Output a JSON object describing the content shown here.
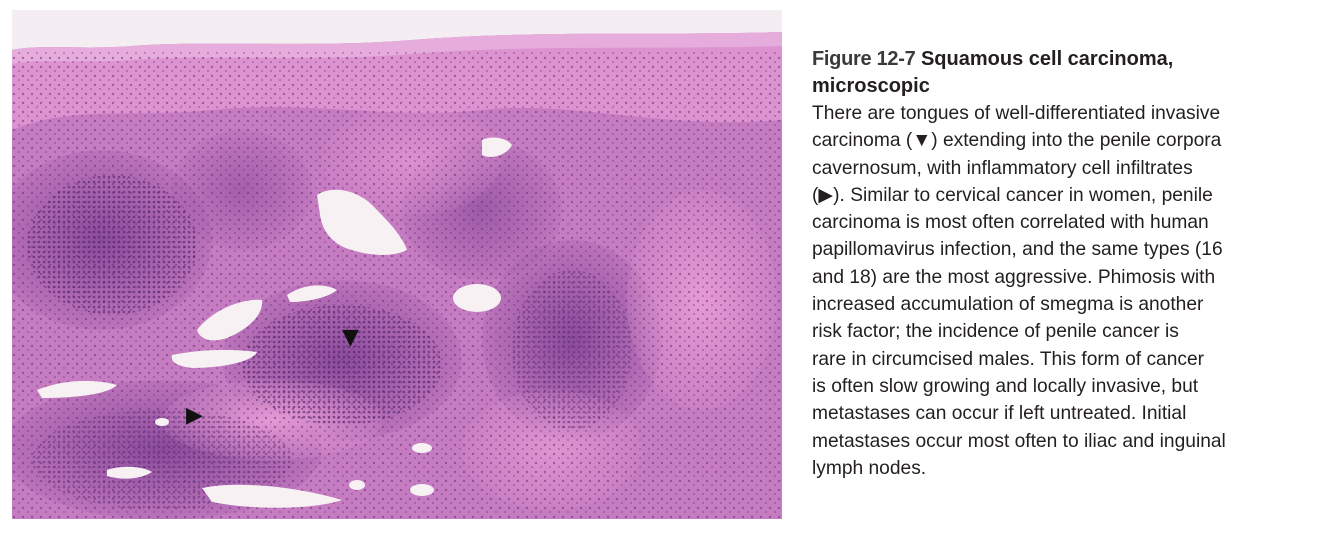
{
  "figure": {
    "number": "Figure 12-7",
    "title_line1": "Squamous cell carcinoma,",
    "title_line2": "microscopic",
    "body_lines": [
      "There are tongues of well-differentiated invasive",
      "carcinoma (▼) extending into the penile corpora",
      "cavernosum, with inflammatory cell infiltrates",
      "(▶). Similar to cervical cancer in women, penile",
      "carcinoma is most often correlated with human",
      "papillomavirus infection, and the same types (16",
      "and 18) are the most aggressive. Phimosis with",
      "increased accumulation of smegma is another",
      "risk factor; the incidence of penile cancer is",
      "rare in circumcised males. This form of cancer",
      "is often slow growing and locally invasive, but",
      "metastases can occur if left untreated. Initial",
      "metastases occur most often to iliac and inguinal",
      "lymph nodes."
    ]
  },
  "image": {
    "markers": [
      "▼",
      "▶"
    ],
    "colors": {
      "stroma": "#c77bc0",
      "epithelium": "#d98ccc",
      "infiltrate": "#8a4a9a",
      "lumen": "#f7f1f4"
    }
  }
}
